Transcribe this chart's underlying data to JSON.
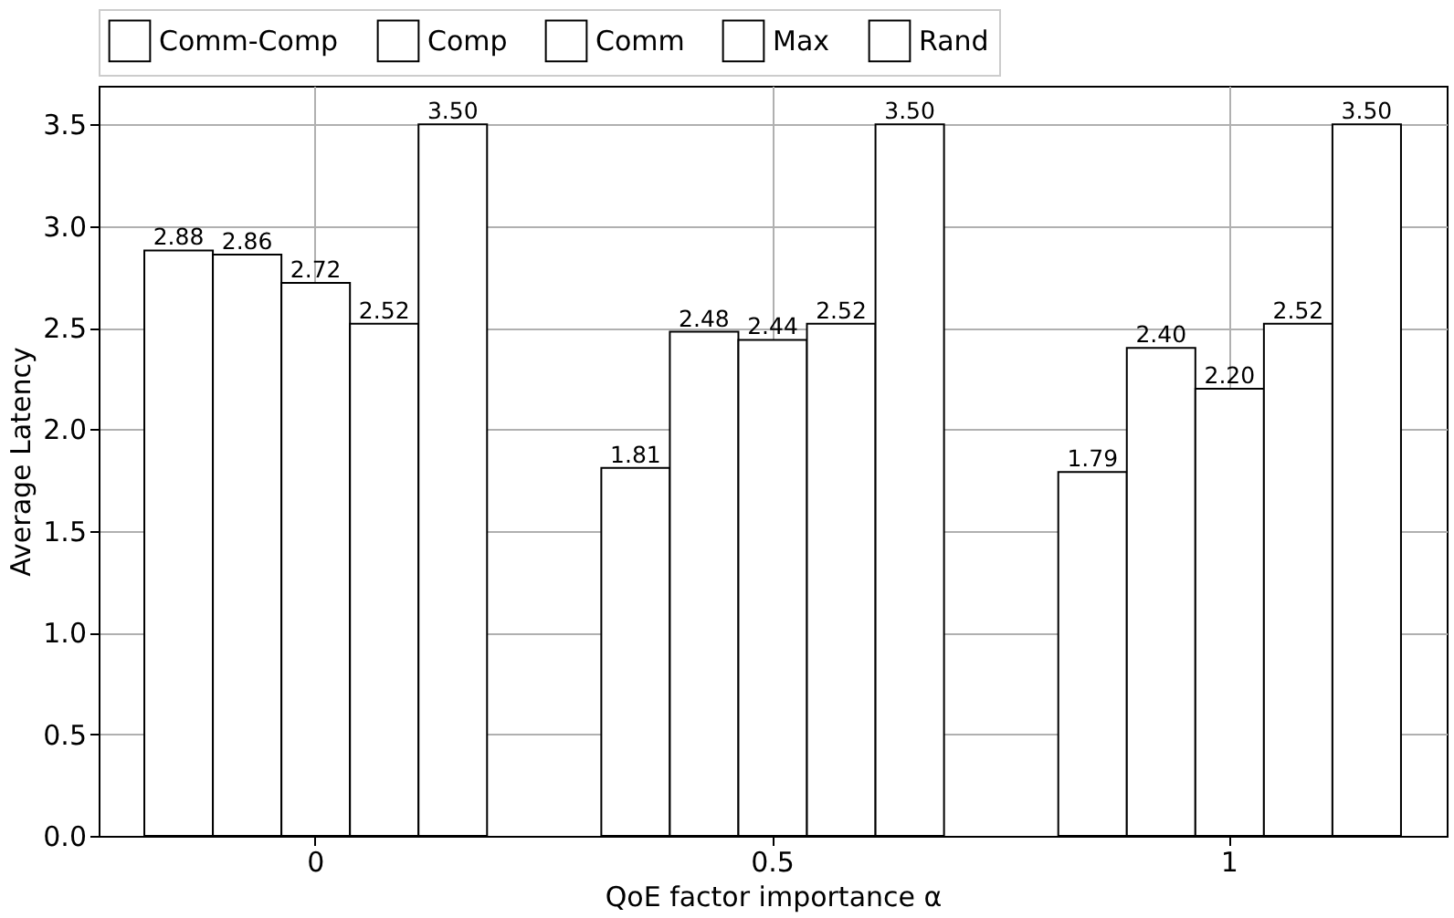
{
  "chart_data": {
    "type": "bar",
    "xlabel": "QoE factor importance α",
    "ylabel": "Average Latency",
    "categories": [
      "0",
      "0.5",
      "1"
    ],
    "series": [
      {
        "name": "Comm-Comp",
        "color": "#ffffff",
        "values": [
          2.88,
          1.81,
          1.79
        ],
        "value_labels": [
          "2.88",
          "1.81",
          "1.79"
        ]
      },
      {
        "name": "Comp",
        "color": "#ffffff",
        "values": [
          2.86,
          2.48,
          2.4
        ],
        "value_labels": [
          "2.86",
          "2.48",
          "2.40"
        ]
      },
      {
        "name": "Comm",
        "color": "#ffffff",
        "values": [
          2.72,
          2.44,
          2.2
        ],
        "value_labels": [
          "2.72",
          "2.44",
          "2.20"
        ]
      },
      {
        "name": "Max",
        "color": "#ffffff",
        "values": [
          2.52,
          2.52,
          2.52
        ],
        "value_labels": [
          "2.52",
          "2.52",
          "2.52"
        ]
      },
      {
        "name": "Rand",
        "color": "#ffffff",
        "values": [
          3.5,
          3.5,
          3.5
        ],
        "value_labels": [
          "3.50",
          "3.50",
          "3.50"
        ]
      }
    ],
    "ylim": [
      0,
      3.69
    ],
    "yticks": [
      {
        "value": 0,
        "label": "0.0"
      },
      {
        "value": 0.5,
        "label": "0.5"
      },
      {
        "value": 1,
        "label": "1.0"
      },
      {
        "value": 1.5,
        "label": "1.5"
      },
      {
        "value": 2,
        "label": "2.0"
      },
      {
        "value": 2.5,
        "label": "2.5"
      },
      {
        "value": 3,
        "label": "3.0"
      },
      {
        "value": 3.5,
        "label": "3.5"
      }
    ],
    "grid": true,
    "legend": "top"
  }
}
